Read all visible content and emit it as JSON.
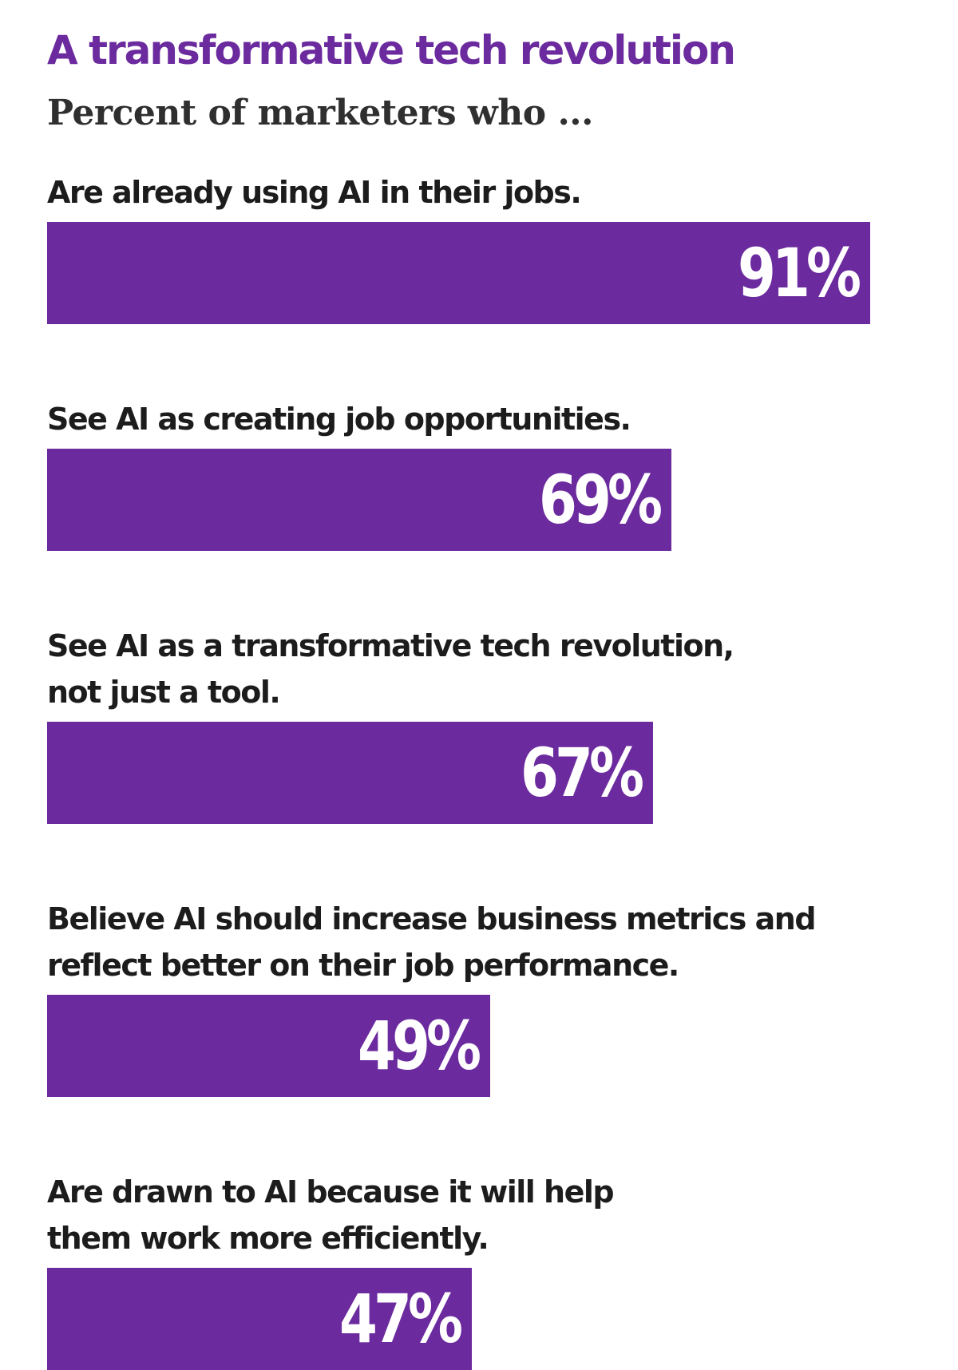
{
  "chart_data": {
    "type": "bar",
    "orientation": "horizontal",
    "title": "A transformative tech revolution",
    "subtitle": "Percent of marketers who ...",
    "categories": [
      "Are already using AI in their jobs.",
      "See AI as creating job opportunities.",
      "See AI as a transformative tech revolution, not just a tool.",
      "Believe AI should increase business metrics and reflect better on their job performance.",
      "Are drawn to AI because it will help them work more efficiently."
    ],
    "category_lines": [
      [
        "Are already using AI in their jobs."
      ],
      [
        "See AI as creating job opportunities."
      ],
      [
        "See AI as a transformative tech revolution,",
        "not just a tool."
      ],
      [
        "Believe AI should increase business metrics and",
        "reflect better on their job performance."
      ],
      [
        "Are drawn to AI because it will help",
        "them work more efficiently."
      ]
    ],
    "values": [
      91,
      69,
      67,
      49,
      47
    ],
    "value_labels": [
      "91%",
      "69%",
      "67%",
      "49%",
      "47%"
    ],
    "unit": "%",
    "grid": false,
    "legend": "none"
  },
  "colors": {
    "title": "#6b2a9e",
    "bar": "#6b2a9e",
    "value_text": "#ffffff",
    "label_text": "#1c1c1c"
  }
}
